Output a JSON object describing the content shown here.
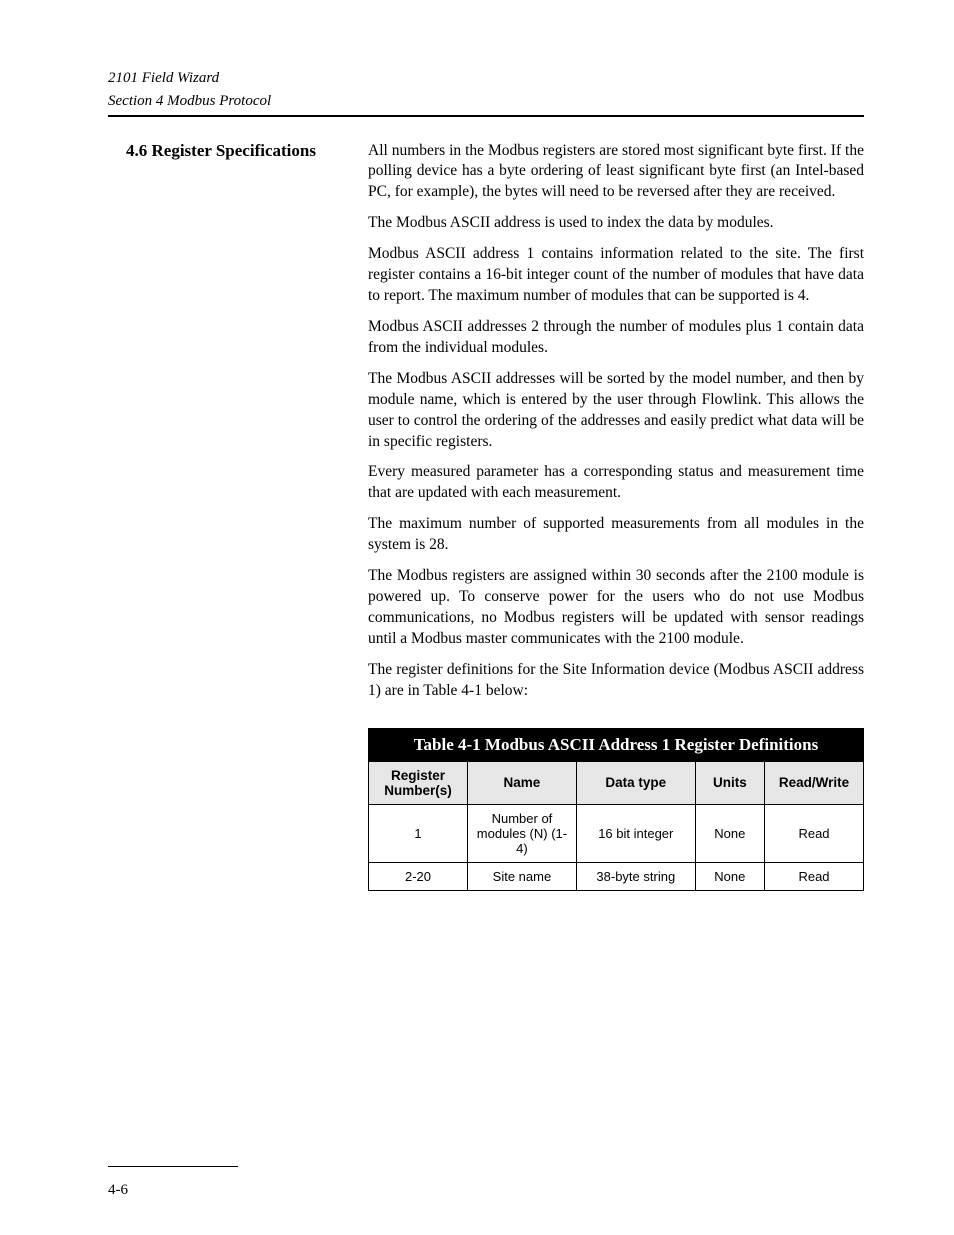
{
  "header": {
    "line1": "2101 Field Wizard",
    "line2": "Section 4   Modbus Protocol"
  },
  "section": {
    "number": "4.6",
    "title": "Register Specifications"
  },
  "paragraphs": [
    "All numbers in the Modbus registers are stored most significant byte first.  If the polling device has a byte ordering of least significant byte first (an Intel-based PC, for example), the bytes will need to be reversed after they are received.",
    "The Modbus ASCII address is used to index the data by modules.",
    "Modbus ASCII address 1 contains information related to the site. The first register contains a 16-bit integer count of the number of modules that have data to report. The maximum number of modules that can be supported is 4.",
    "Modbus ASCII addresses 2 through the number of modules plus 1 contain data from the individual modules.",
    "The Modbus ASCII addresses will be sorted by the model number, and then by module name, which is entered by the user through Flowlink. This allows the user to control the ordering of the addresses and easily predict what data will be in specific registers.",
    "Every measured parameter has a corresponding status and measurement time that are updated with each measurement.",
    "The maximum number of supported measurements from all modules in the system is 28.",
    "The Modbus registers are assigned within 30 seconds after the 2100 module is powered up.  To conserve power for the users who do not use Modbus communications, no Modbus registers will be updated with sensor readings until a Modbus master communicates with the 2100 module.",
    "The register definitions for the Site Information device (Modbus ASCII address 1) are in Table 4-1 below:"
  ],
  "table": {
    "title": "Table 4-1  Modbus ASCII Address 1 Register Definitions",
    "columns": [
      "Register Number(s)",
      "Name",
      "Data type",
      "Units",
      "Read/Write"
    ],
    "col_widths": [
      "20%",
      "22%",
      "24%",
      "14%",
      "20%"
    ],
    "rows": [
      [
        "1",
        "Number of modules (N) (1-4)",
        "16 bit integer",
        "None",
        "Read"
      ],
      [
        "2-20",
        "Site name",
        "38-byte string",
        "None",
        "Read"
      ]
    ]
  },
  "footer": {
    "page_number": "4-6"
  }
}
